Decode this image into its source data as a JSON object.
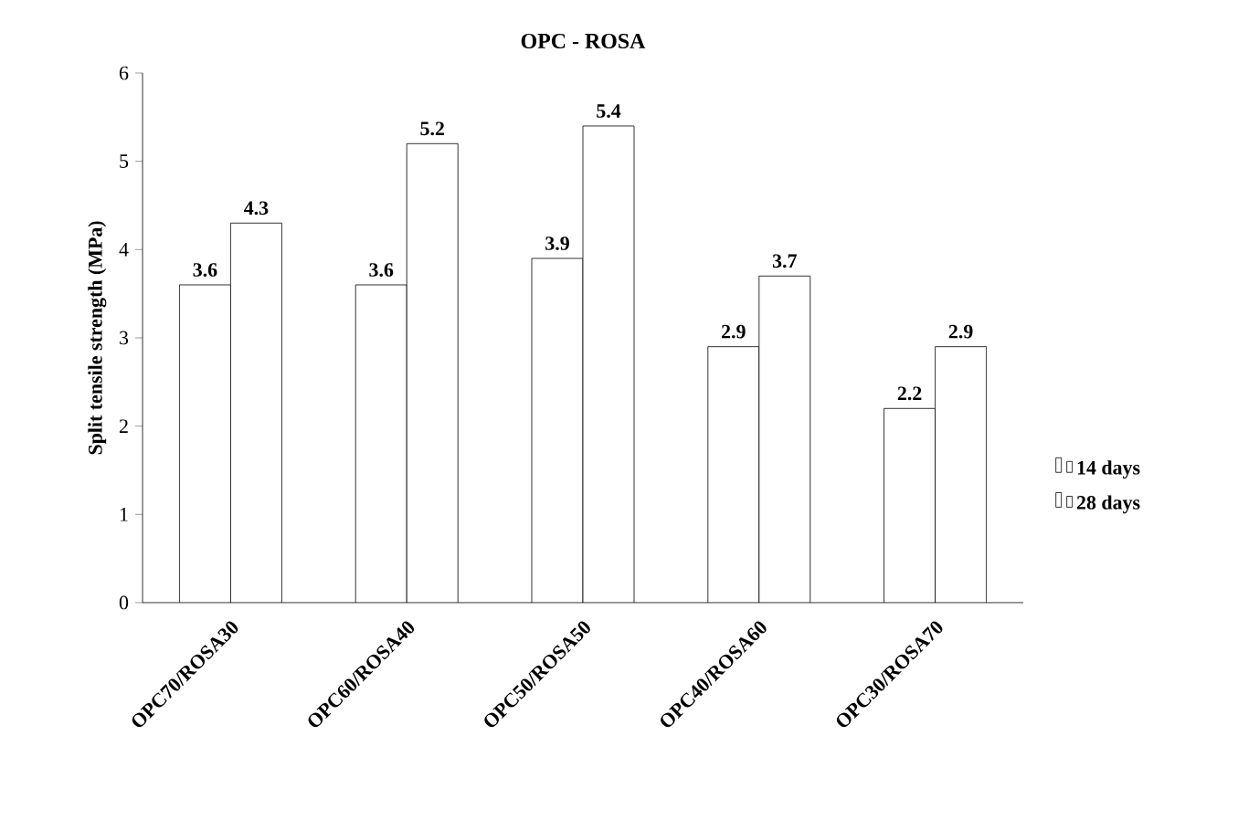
{
  "chart_data": {
    "type": "bar",
    "title": "OPC - ROSA",
    "ylabel": "Split tensile strength (MPa)",
    "categories": [
      "OPC70/ROSA30",
      "OPC60/ROSA40",
      "OPC50/ROSA50",
      "OPC40/ROSA60",
      "OPC30/ROSA70"
    ],
    "series": [
      {
        "name": "14 days",
        "color": "#ffffff",
        "values": [
          3.6,
          3.6,
          3.9,
          2.9,
          2.2
        ]
      },
      {
        "name": "28 days",
        "color": "#ffffff",
        "values": [
          4.3,
          5.2,
          5.4,
          3.7,
          2.9
        ]
      }
    ],
    "ylim": [
      0,
      6
    ],
    "yticks": [
      0,
      1,
      2,
      3,
      4,
      5,
      6
    ],
    "data_labels": true,
    "grid": false,
    "legend": "right"
  }
}
